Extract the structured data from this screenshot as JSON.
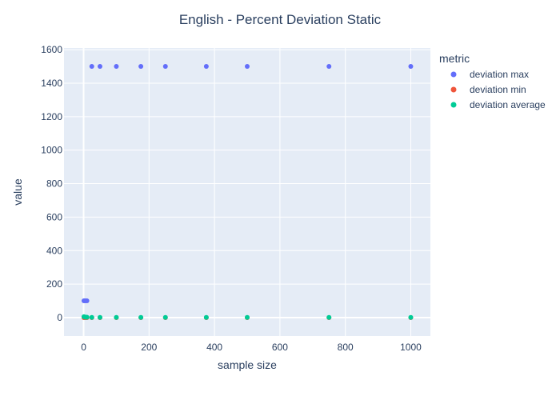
{
  "chart_data": {
    "type": "scatter",
    "title": "English - Percent Deviation Static",
    "xlabel": "sample size",
    "ylabel": "value",
    "xlim": [
      -60,
      1060
    ],
    "ylim": [
      -110,
      1610
    ],
    "xticks": [
      0,
      200,
      400,
      600,
      800,
      1000
    ],
    "yticks": [
      0,
      200,
      400,
      600,
      800,
      1000,
      1200,
      1400,
      1600
    ],
    "xtick_labels": [
      "0",
      "200",
      "400",
      "600",
      "800",
      "1000"
    ],
    "ytick_labels": [
      "0",
      "200",
      "400",
      "600",
      "800",
      "1000",
      "1200",
      "1400",
      "1600"
    ],
    "grid": true,
    "legend_title": "metric",
    "legend_position": "top-right",
    "series": [
      {
        "name": "deviation max",
        "color": "#636efa",
        "points": [
          [
            1,
            100
          ],
          [
            5,
            100
          ],
          [
            10,
            100
          ],
          [
            25,
            1500
          ],
          [
            50,
            1500
          ],
          [
            100,
            1500
          ],
          [
            175,
            1500
          ],
          [
            250,
            1500
          ],
          [
            375,
            1500
          ],
          [
            500,
            1500
          ],
          [
            750,
            1500
          ],
          [
            1000,
            1500
          ]
        ]
      },
      {
        "name": "deviation min",
        "color": "#ef553b",
        "points": [
          [
            1,
            0
          ],
          [
            5,
            0
          ],
          [
            10,
            0
          ],
          [
            25,
            0
          ],
          [
            50,
            0
          ],
          [
            100,
            0
          ],
          [
            175,
            0
          ],
          [
            250,
            0
          ],
          [
            375,
            0
          ],
          [
            500,
            0
          ],
          [
            750,
            0
          ],
          [
            1000,
            0
          ]
        ]
      },
      {
        "name": "deviation average",
        "color": "#00cc96",
        "points": [
          [
            1,
            5
          ],
          [
            5,
            3
          ],
          [
            10,
            2
          ],
          [
            25,
            1
          ],
          [
            50,
            1
          ],
          [
            100,
            1
          ],
          [
            175,
            1
          ],
          [
            250,
            1
          ],
          [
            375,
            1
          ],
          [
            500,
            1
          ],
          [
            750,
            1
          ],
          [
            1000,
            1
          ]
        ]
      }
    ]
  },
  "colors": {
    "plot_background": "#e5ecf6",
    "grid": "#ffffff",
    "text": "#2a3f5f"
  }
}
